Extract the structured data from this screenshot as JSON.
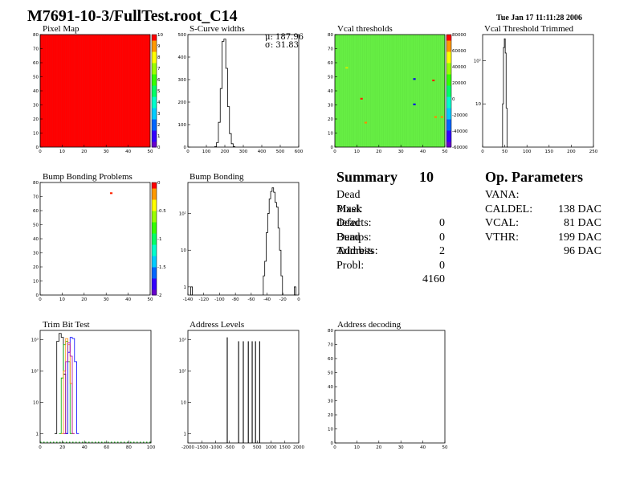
{
  "header": {
    "title": "M7691-10-3/FullTest.root_C14",
    "date": "Tue Jan 17 11:11:28 2006"
  },
  "panels": {
    "pixel_map": {
      "title": "Pixel Map"
    },
    "scurve": {
      "title": "S-Curve widths",
      "stats_mu": "μ: 187.96",
      "stats_sigma": "σ: 31.83"
    },
    "vcal_thr": {
      "title": "Vcal thresholds"
    },
    "vcal_trim": {
      "title": "Vcal Threshold Trimmed"
    },
    "bump_problems": {
      "title": "Bump Bonding Problems"
    },
    "bump_bonding": {
      "title": "Bump Bonding"
    },
    "trim_bit": {
      "title": "Trim Bit Test"
    },
    "address_levels": {
      "title": "Address Levels"
    },
    "address_decoding": {
      "title": "Address decoding"
    }
  },
  "summary": {
    "label": "Summary",
    "total": "10",
    "rows": [
      {
        "label": "Dead Pixel:",
        "value": "0"
      },
      {
        "label": "Mask defects:",
        "value": "0"
      },
      {
        "label": "Dead Bumps:",
        "value": "2"
      },
      {
        "label": "Dead Trimbits:",
        "value": "0"
      },
      {
        "label": "Address Probl:",
        "value": "4160"
      }
    ]
  },
  "op_params": {
    "label": "Op. Parameters",
    "rows": [
      {
        "label": "VANA:",
        "value": "138 DAC"
      },
      {
        "label": "CALDEL:",
        "value": "81 DAC"
      },
      {
        "label": "VCAL:",
        "value": "199 DAC"
      },
      {
        "label": "VTHR:",
        "value": "96 DAC"
      }
    ]
  },
  "colors": {
    "pixel_map_fill": "#ff0000",
    "vcal_fill": "#66ee44",
    "trim_series": [
      "#000000",
      "#00aa00",
      "#ff8800",
      "#0000ff",
      "#aa00aa"
    ]
  },
  "chart_data": [
    {
      "type": "heatmap",
      "id": "pixel_map",
      "title": "Pixel Map",
      "xlim": [
        0,
        52
      ],
      "ylim": [
        0,
        80
      ],
      "xticks": [
        "0",
        "10",
        "20",
        "30",
        "40",
        "50"
      ],
      "yticks": [
        "0",
        "10",
        "20",
        "30",
        "40",
        "50",
        "60",
        "70",
        "80"
      ],
      "zlim": [
        0,
        10
      ],
      "zticks": [
        "0",
        "1",
        "2",
        "3",
        "4",
        "5",
        "6",
        "7",
        "8",
        "9",
        "10"
      ],
      "uniform_value": 10
    },
    {
      "type": "bar",
      "id": "scurve",
      "title": "S-Curve widths",
      "xlim": [
        0,
        600
      ],
      "ylim": [
        0,
        500
      ],
      "xticks": [
        "0",
        "100",
        "200",
        "300",
        "400",
        "500",
        "600"
      ],
      "yticks": [
        "0",
        "100",
        "200",
        "300",
        "400",
        "500"
      ],
      "x": [
        150,
        160,
        170,
        180,
        190,
        200,
        210,
        220,
        230,
        240,
        250
      ],
      "values": [
        2,
        20,
        110,
        260,
        470,
        480,
        350,
        180,
        60,
        15,
        2
      ],
      "stats": {
        "mean": 187.96,
        "rms": 31.83
      }
    },
    {
      "type": "heatmap",
      "id": "vcal_thr",
      "title": "Vcal thresholds",
      "xlim": [
        0,
        52
      ],
      "ylim": [
        0,
        80
      ],
      "xticks": [
        "0",
        "10",
        "20",
        "30",
        "40",
        "50"
      ],
      "yticks": [
        "0",
        "10",
        "20",
        "30",
        "40",
        "50",
        "60",
        "70",
        "80"
      ],
      "zticks": [
        "80000",
        "60000",
        "40000",
        "20000",
        "0",
        "-20000",
        "-40000",
        "-60000"
      ],
      "outliers": [
        {
          "col": 12,
          "row": 34,
          "color": "#ff2200"
        },
        {
          "col": 37,
          "row": 48,
          "color": "#0000ee"
        },
        {
          "col": 37,
          "row": 30,
          "color": "#0000ee"
        },
        {
          "col": 46,
          "row": 47,
          "color": "#ff2200"
        },
        {
          "col": 50,
          "row": 21,
          "color": "#ff8800"
        },
        {
          "col": 47,
          "row": 21,
          "color": "#ff8800"
        },
        {
          "col": 14,
          "row": 17,
          "color": "#ff8800"
        },
        {
          "col": 5,
          "row": 56,
          "color": "#ccee00"
        }
      ]
    },
    {
      "type": "bar",
      "id": "vcal_trim",
      "title": "Vcal Threshold Trimmed",
      "xlim": [
        0,
        250
      ],
      "ylog": true,
      "ylim": [
        1,
        400
      ],
      "xticks": [
        "0",
        "50",
        "100",
        "150",
        "200",
        "250"
      ],
      "yticks": [
        "10",
        "10²"
      ],
      "x": [
        44,
        46,
        48,
        50,
        52,
        54,
        56
      ],
      "values": [
        1,
        10,
        200,
        320,
        150,
        8,
        1
      ]
    },
    {
      "type": "heatmap",
      "id": "bump_problems",
      "title": "Bump Bonding Problems",
      "xlim": [
        0,
        52
      ],
      "ylim": [
        0,
        80
      ],
      "xticks": [
        "0",
        "10",
        "20",
        "30",
        "40",
        "50"
      ],
      "yticks": [
        "0",
        "10",
        "20",
        "30",
        "40",
        "50",
        "60",
        "70",
        "80"
      ],
      "zticks": [
        "0",
        "-0.5",
        "-1",
        "-1.5",
        "-2"
      ],
      "outliers": [
        {
          "col": 33,
          "row": 72,
          "color": "#ff2200"
        }
      ]
    },
    {
      "type": "bar",
      "id": "bump_bonding",
      "title": "Bump Bonding",
      "xlim": [
        -145,
        5
      ],
      "ylog": true,
      "ylim": [
        0.6,
        700
      ],
      "xticks": [
        "-140",
        "-120",
        "-100",
        "-80",
        "-60",
        "-40",
        "-20",
        "0"
      ],
      "yticks": [
        "1",
        "10",
        "10²"
      ],
      "x": [
        -140,
        -42,
        -40,
        -38,
        -36,
        -34,
        -32,
        -30,
        -28,
        -26,
        -24,
        -22,
        -20,
        -18,
        0
      ],
      "values": [
        1,
        2,
        5,
        30,
        100,
        250,
        400,
        500,
        380,
        200,
        150,
        40,
        10,
        2,
        1
      ]
    },
    {
      "type": "line",
      "id": "trim_bit",
      "title": "Trim Bit Test",
      "xlim": [
        0,
        100
      ],
      "ylog": true,
      "ylim": [
        0.5,
        2000
      ],
      "xticks": [
        "0",
        "20",
        "40",
        "60",
        "80",
        "100"
      ],
      "yticks": [
        "1",
        "10",
        "10²",
        "10³"
      ],
      "series": [
        {
          "values": [
            [
              14,
              1
            ],
            [
              16,
              900
            ],
            [
              18,
              1600
            ],
            [
              20,
              1200
            ],
            [
              22,
              80
            ],
            [
              24,
              1
            ]
          ]
        },
        {
          "values": [
            [
              18,
              1
            ],
            [
              20,
              60
            ],
            [
              22,
              700
            ],
            [
              24,
              900
            ],
            [
              26,
              200
            ],
            [
              28,
              1
            ]
          ]
        },
        {
          "values": [
            [
              20,
              1
            ],
            [
              22,
              100
            ],
            [
              24,
              1100
            ],
            [
              26,
              700
            ],
            [
              28,
              40
            ],
            [
              30,
              1
            ]
          ]
        },
        {
          "values": [
            [
              24,
              1
            ],
            [
              26,
              400
            ],
            [
              28,
              1200
            ],
            [
              30,
              1100
            ],
            [
              32,
              200
            ],
            [
              34,
              1
            ]
          ]
        },
        {
          "values": [
            [
              22,
              1
            ],
            [
              24,
              200
            ],
            [
              26,
              800
            ],
            [
              28,
              300
            ],
            [
              30,
              1
            ]
          ]
        }
      ]
    },
    {
      "type": "bar",
      "id": "address_levels",
      "title": "Address Levels",
      "xlim": [
        -2000,
        2000
      ],
      "ylog": true,
      "ylim": [
        0.5,
        2000
      ],
      "xticks": [
        "-2000",
        "-1500",
        "-1000",
        "-500",
        "0",
        "500",
        "1000",
        "1500",
        "2000"
      ],
      "yticks": [
        "1",
        "10",
        "10²",
        "10³"
      ],
      "x": [
        -580,
        -170,
        0,
        180,
        320,
        440,
        590
      ],
      "values": [
        1200,
        900,
        900,
        900,
        900,
        900,
        900
      ]
    },
    {
      "type": "heatmap",
      "id": "address_decoding",
      "title": "Address decoding",
      "xlim": [
        0,
        52
      ],
      "ylim": [
        0,
        80
      ],
      "xticks": [
        "0",
        "10",
        "20",
        "30",
        "40",
        "50"
      ],
      "yticks": [
        "0",
        "10",
        "20",
        "30",
        "40",
        "50",
        "60",
        "70",
        "80"
      ]
    }
  ]
}
